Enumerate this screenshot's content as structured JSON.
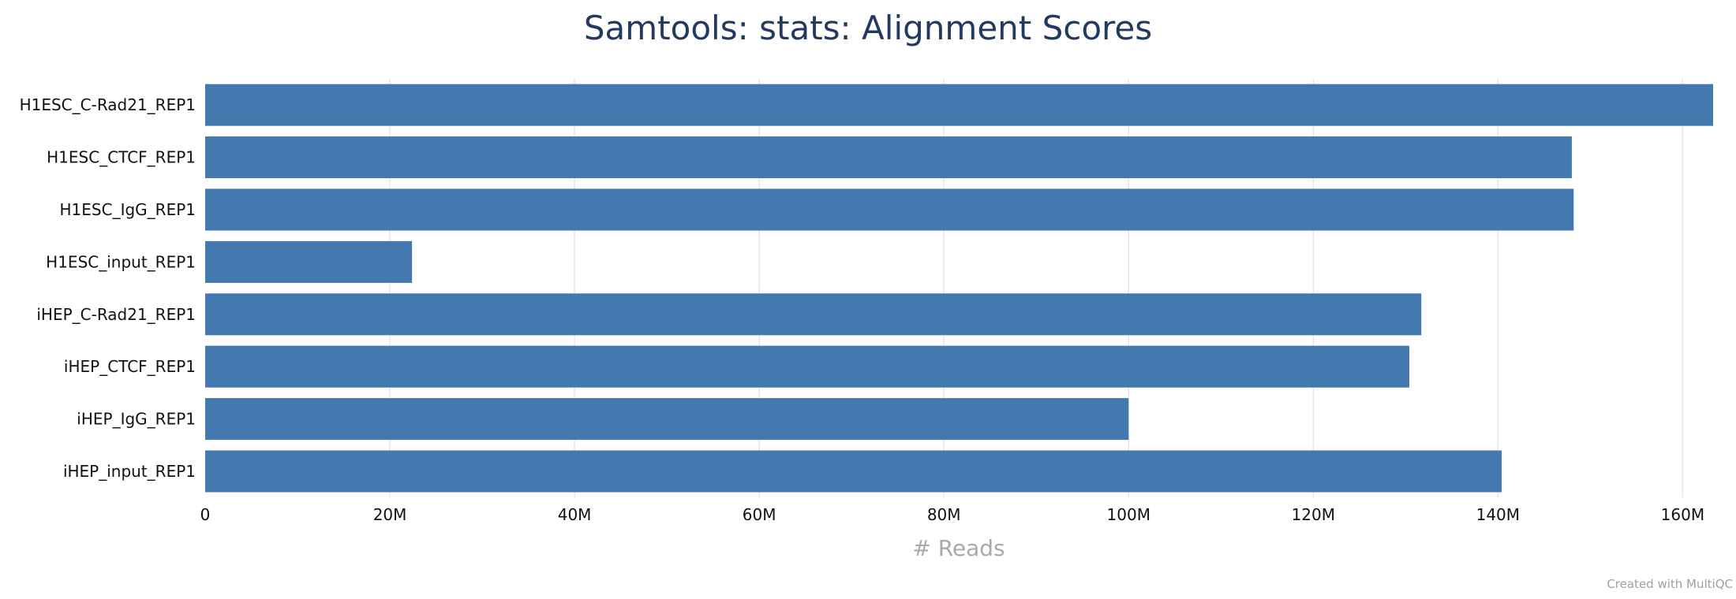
{
  "chart_data": {
    "type": "bar",
    "orientation": "horizontal",
    "title": "Samtools: stats: Alignment Scores",
    "xlabel": "# Reads",
    "ylabel": "",
    "categories": [
      "H1ESC_C-Rad21_REP1",
      "H1ESC_CTCF_REP1",
      "H1ESC_IgG_REP1",
      "H1ESC_input_REP1",
      "iHEP_C-Rad21_REP1",
      "iHEP_CTCF_REP1",
      "iHEP_IgG_REP1",
      "iHEP_input_REP1"
    ],
    "values": [
      163300000,
      148000000,
      148200000,
      22400000,
      131700000,
      130400000,
      100000000,
      140400000
    ],
    "xlim": [
      0,
      163300000
    ],
    "xticks": [
      0,
      20000000,
      40000000,
      60000000,
      80000000,
      100000000,
      120000000,
      140000000,
      160000000
    ],
    "xtick_labels": [
      "0",
      "20M",
      "40M",
      "60M",
      "80M",
      "100M",
      "120M",
      "140M",
      "160M"
    ],
    "grid": true,
    "bar_color": "#4479b0"
  },
  "footer": {
    "credit": "Created with MultiQC"
  }
}
